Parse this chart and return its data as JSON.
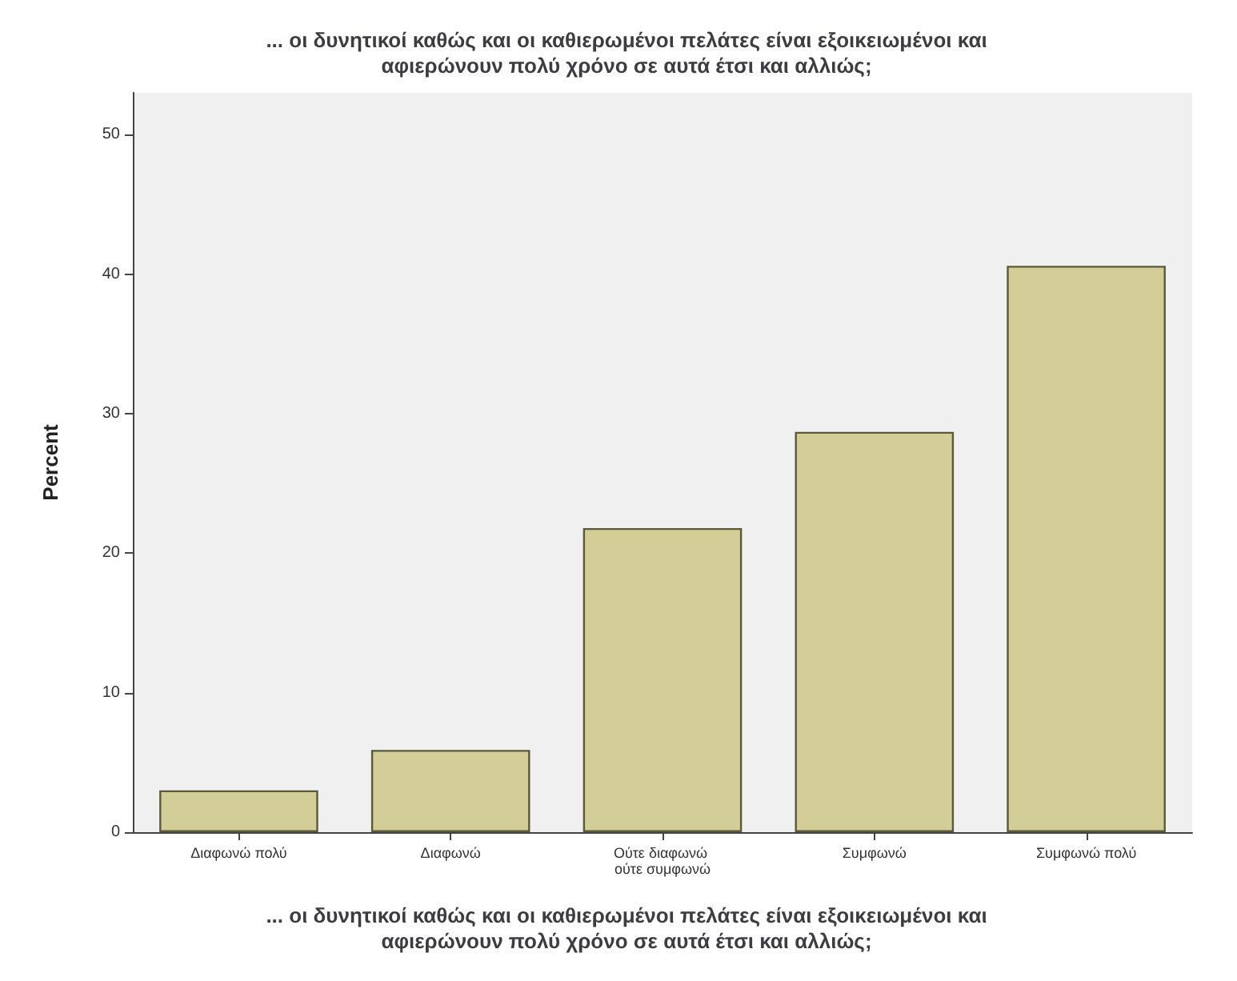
{
  "chart_data": {
    "type": "bar",
    "title": "... οι δυνητικοί καθώς και οι καθιερωμένοι πελάτες είναι εξοικειωμένοι και\nαφιερώνουν πολύ χρόνο σε αυτά έτσι και αλλιώς;",
    "xlabel": "... οι δυνητικοί καθώς και οι καθιερωμένοι πελάτες είναι εξοικειωμένοι και\nαφιερώνουν πολύ χρόνο σε αυτά έτσι και αλλιώς;",
    "ylabel": "Percent",
    "categories": [
      "Διαφωνώ πολύ",
      "Διαφωνώ",
      "Ούτε διαφωνώ ούτε συμφωνώ",
      "Συμφωνώ",
      "Συμφωνώ πολύ"
    ],
    "values": [
      3.0,
      5.9,
      21.8,
      28.7,
      40.6
    ],
    "color": "#d3cd97",
    "ylim": [
      0,
      53
    ],
    "yticks": [
      0,
      10,
      20,
      30,
      40,
      50
    ],
    "grid": false
  }
}
